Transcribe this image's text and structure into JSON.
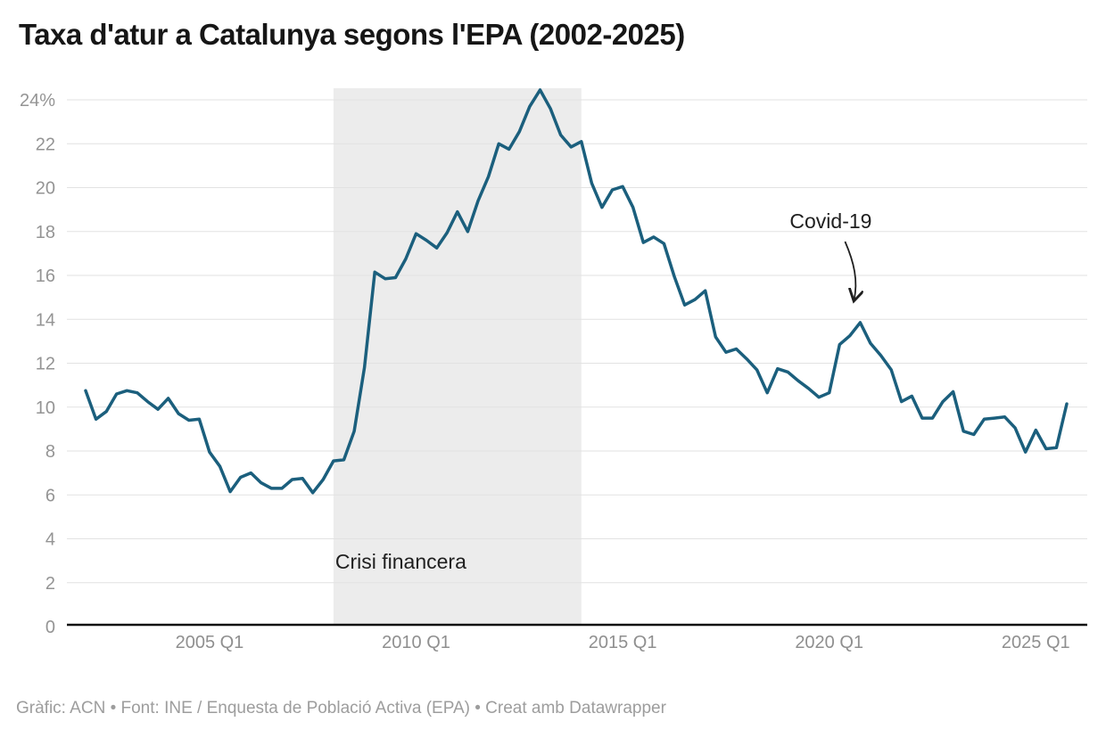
{
  "header": {
    "title": "Taxa d'atur a Catalunya segons l'EPA (2002-2025)"
  },
  "footer": {
    "credit": "Gràfic: ACN • Font: INE / Enquesta de Població Activa (EPA) • Creat amb Datawrapper"
  },
  "chart_data": {
    "type": "line",
    "title": "Taxa d'atur a Catalunya segons l'EPA (2002-2025)",
    "unit": "%",
    "xlabel": "",
    "ylabel": "",
    "ylim": [
      0,
      24
    ],
    "grid": "horizontal",
    "legend": "none",
    "categories": [
      "2002 Q1",
      "2002 Q2",
      "2002 Q3",
      "2002 Q4",
      "2003 Q1",
      "2003 Q2",
      "2003 Q3",
      "2003 Q4",
      "2004 Q1",
      "2004 Q2",
      "2004 Q3",
      "2004 Q4",
      "2005 Q1",
      "2005 Q2",
      "2005 Q3",
      "2005 Q4",
      "2006 Q1",
      "2006 Q2",
      "2006 Q3",
      "2006 Q4",
      "2007 Q1",
      "2007 Q2",
      "2007 Q3",
      "2007 Q4",
      "2008 Q1",
      "2008 Q2",
      "2008 Q3",
      "2008 Q4",
      "2009 Q1",
      "2009 Q2",
      "2009 Q3",
      "2009 Q4",
      "2010 Q1",
      "2010 Q2",
      "2010 Q3",
      "2010 Q4",
      "2011 Q1",
      "2011 Q2",
      "2011 Q3",
      "2011 Q4",
      "2012 Q1",
      "2012 Q2",
      "2012 Q3",
      "2012 Q4",
      "2013 Q1",
      "2013 Q2",
      "2013 Q3",
      "2013 Q4",
      "2014 Q1",
      "2014 Q2",
      "2014 Q3",
      "2014 Q4",
      "2015 Q1",
      "2015 Q2",
      "2015 Q3",
      "2015 Q4",
      "2016 Q1",
      "2016 Q2",
      "2016 Q3",
      "2016 Q4",
      "2017 Q1",
      "2017 Q2",
      "2017 Q3",
      "2017 Q4",
      "2018 Q1",
      "2018 Q2",
      "2018 Q3",
      "2018 Q4",
      "2019 Q1",
      "2019 Q2",
      "2019 Q3",
      "2019 Q4",
      "2020 Q1",
      "2020 Q2",
      "2020 Q3",
      "2020 Q4",
      "2021 Q1",
      "2021 Q2",
      "2021 Q3",
      "2021 Q4",
      "2022 Q1",
      "2022 Q2",
      "2022 Q3",
      "2022 Q4",
      "2023 Q1",
      "2023 Q2",
      "2023 Q3",
      "2023 Q4",
      "2024 Q1",
      "2024 Q2",
      "2024 Q3",
      "2024 Q4",
      "2025 Q1",
      "2025 Q2",
      "2025 Q3",
      "2025 Q4"
    ],
    "values": [
      10.75,
      9.45,
      9.8,
      10.6,
      10.75,
      10.65,
      10.25,
      9.9,
      10.4,
      9.7,
      9.4,
      9.45,
      7.95,
      7.3,
      6.15,
      6.8,
      7.0,
      6.55,
      6.3,
      6.3,
      6.7,
      6.75,
      6.1,
      6.7,
      7.55,
      7.6,
      8.9,
      11.8,
      16.15,
      15.85,
      15.9,
      16.75,
      17.9,
      17.6,
      17.25,
      17.95,
      18.9,
      18.0,
      19.4,
      20.5,
      22.0,
      21.75,
      22.55,
      23.7,
      24.45,
      23.6,
      22.4,
      21.85,
      22.1,
      20.2,
      19.1,
      19.9,
      20.05,
      19.1,
      17.5,
      17.75,
      17.45,
      15.95,
      14.65,
      14.9,
      15.3,
      13.2,
      12.5,
      12.65,
      12.2,
      11.7,
      10.65,
      11.75,
      11.6,
      11.2,
      10.85,
      10.45,
      10.65,
      12.85,
      13.25,
      13.85,
      12.9,
      12.35,
      11.7,
      10.25,
      10.5,
      9.5,
      9.5,
      10.25,
      10.7,
      8.9,
      8.75,
      9.45,
      9.5,
      9.55,
      9.05,
      7.95,
      8.95,
      8.1,
      8.15,
      10.15
    ],
    "y_ticks": [
      0,
      2,
      4,
      6,
      8,
      10,
      12,
      14,
      16,
      18,
      20,
      22,
      24
    ],
    "y_top_tick_label": "24%",
    "x_ticks": [
      {
        "label": "2005 Q1",
        "index": 12
      },
      {
        "label": "2010 Q1",
        "index": 32
      },
      {
        "label": "2015 Q1",
        "index": 52
      },
      {
        "label": "2020 Q1",
        "index": 72
      },
      {
        "label": "2025 Q1",
        "index": 92
      }
    ],
    "annotations": {
      "crisi": {
        "label": "Crisi financera",
        "from": "2008 Q1",
        "to": "2014 Q1",
        "from_index": 24,
        "to_index": 48
      },
      "covid": {
        "label": "Covid-19",
        "points_to": "2020 Q4",
        "target_index": 75,
        "target_value": 13.85
      }
    },
    "colors": {
      "line": "#1b5f7d",
      "band": "#ececec",
      "grid": "#e2e2e2",
      "axis": "#111111",
      "tick_label": "#949494",
      "annotation": "#1f1f1f"
    }
  }
}
